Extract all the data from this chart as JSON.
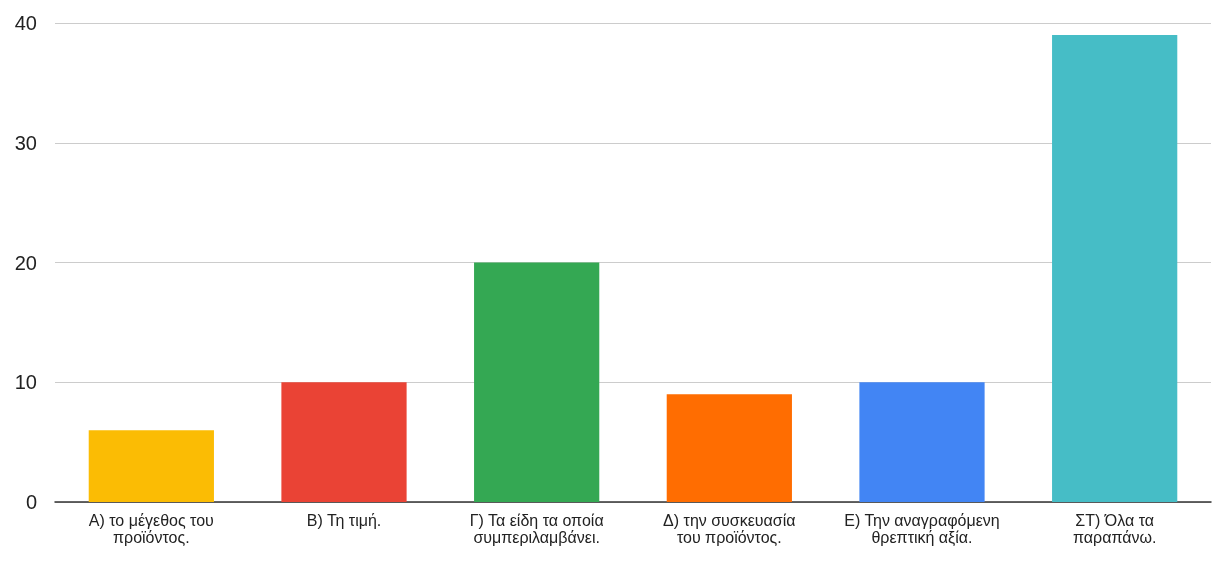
{
  "chart_data": {
    "type": "bar",
    "categories": [
      "Α) το μέγεθος του προϊόντος.",
      "Β) Τη τιμή.",
      "Γ) Τα είδη τα οποία συμπεριλαμβάνει.",
      "Δ) την συσκευασία του προϊόντος.",
      "Ε) Την αναγραφόμενη θρεπτική αξία.",
      "ΣΤ) Όλα τα παραπάνω."
    ],
    "values": [
      6,
      10,
      20,
      9,
      10,
      39
    ],
    "colors": [
      "#fbbc04",
      "#ea4335",
      "#34a853",
      "#ff6d01",
      "#4285f4",
      "#46bdc6"
    ],
    "ylim": [
      0,
      40
    ],
    "yticks": [
      0,
      10,
      20,
      30,
      40
    ],
    "grid": "y"
  }
}
